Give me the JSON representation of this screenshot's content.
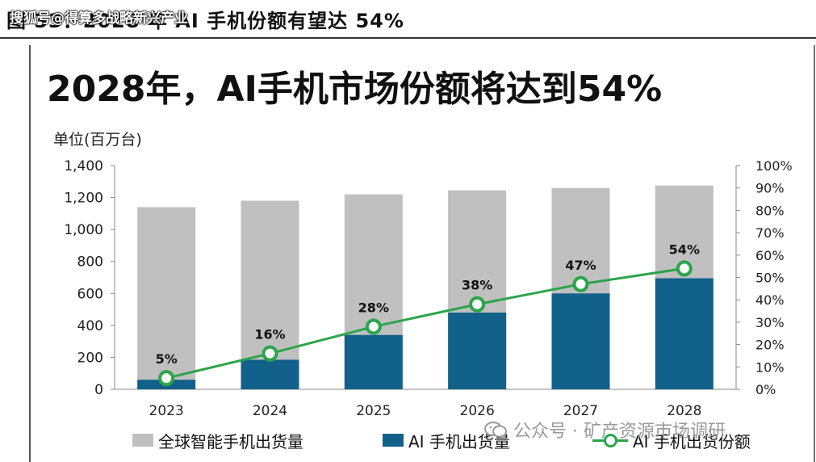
{
  "header": {
    "caption": "图 33：2028 年 AI 手机份额有望达 54%",
    "source_overlay": "搜狐号@得算多战略新兴产业"
  },
  "headline": "2028年，AI手机市场份额将达到54%",
  "unit_label": "单位(百万台)",
  "legend": {
    "total": "全球智能手机出货量",
    "ai": "AI 手机出货量",
    "share": "AI 手机出货份额"
  },
  "watermark": {
    "text": "公众号 · 矿产资源市场调研",
    "icon": "wechat-icon"
  },
  "colors": {
    "total_bar": "#c0c0c0",
    "ai_bar": "#12618a",
    "share_line": "#2aa54a"
  },
  "chart_data": {
    "type": "bar",
    "categories": [
      "2023",
      "2024",
      "2025",
      "2026",
      "2027",
      "2028"
    ],
    "series": [
      {
        "name": "全球智能手机出货量",
        "type": "bar",
        "axis": "left",
        "values": [
          1140,
          1180,
          1220,
          1245,
          1260,
          1275
        ]
      },
      {
        "name": "AI 手机出货量",
        "type": "bar",
        "axis": "left",
        "values": [
          60,
          185,
          340,
          480,
          600,
          695
        ]
      },
      {
        "name": "AI 手机出货份额",
        "type": "line",
        "axis": "right",
        "values": [
          5,
          16,
          28,
          38,
          47,
          54
        ]
      }
    ],
    "data_labels": [
      "5%",
      "16%",
      "28%",
      "38%",
      "47%",
      "54%"
    ],
    "y_left": {
      "min": 0,
      "max": 1400,
      "ticks": [
        "0",
        "200",
        "400",
        "600",
        "800",
        "1,000",
        "1,200",
        "1,400"
      ]
    },
    "y_right": {
      "min": 0,
      "max": 100,
      "ticks": [
        "0%",
        "10%",
        "20%",
        "30%",
        "40%",
        "50%",
        "60%",
        "70%",
        "80%",
        "90%",
        "100%"
      ]
    },
    "grid": false,
    "legend_position": "bottom"
  }
}
